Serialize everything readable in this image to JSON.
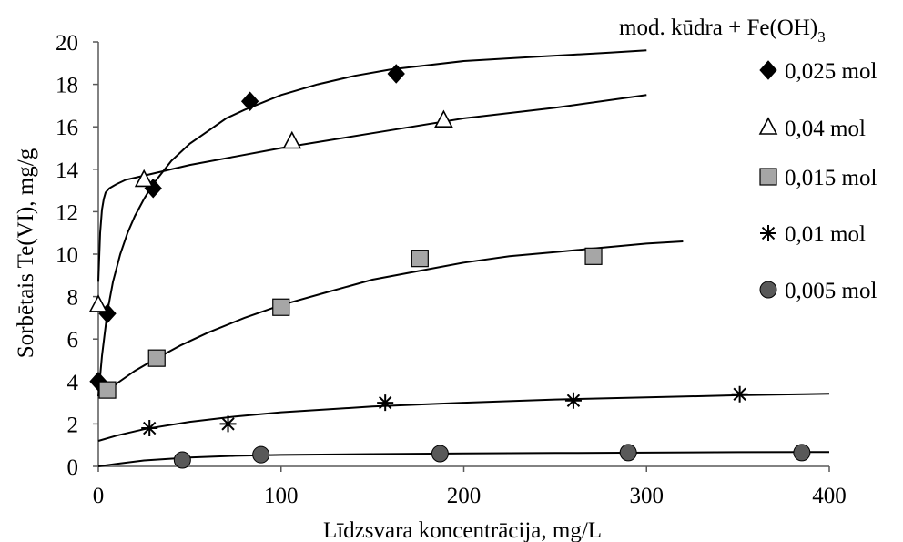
{
  "chart_data": {
    "type": "scatter",
    "title": "",
    "xlabel": "Līdzsvara koncentrācija, mg/L",
    "ylabel": "Sorbētais Te(VI),  mg/g",
    "xlim": [
      0,
      400
    ],
    "ylim": [
      0,
      20
    ],
    "x_ticks": [
      "0",
      "100",
      "200",
      "300",
      "400"
    ],
    "y_ticks": [
      "0",
      "2",
      "4",
      "6",
      "8",
      "10",
      "12",
      "14",
      "16",
      "18",
      "20"
    ],
    "grid": false,
    "legend_position": "right",
    "legend_title_main": "mod. kūdra + Fe(OH)",
    "legend_title_sub": "3",
    "series": [
      {
        "name": "0,025 mol",
        "marker": "diamond",
        "color": "#000000",
        "x": [
          0,
          5,
          30,
          83,
          163
        ],
        "y": [
          4.0,
          7.2,
          13.1,
          17.2,
          18.5
        ],
        "fit_x": [
          0,
          2,
          5,
          8,
          12,
          16,
          20,
          25,
          30,
          40,
          50,
          60,
          70,
          80,
          100,
          120,
          140,
          160,
          180,
          200,
          220,
          240,
          260,
          280,
          300
        ],
        "fit_y": [
          3.3,
          5.2,
          7.3,
          8.7,
          10.0,
          11.0,
          11.8,
          12.6,
          13.3,
          14.4,
          15.2,
          15.8,
          16.4,
          16.8,
          17.5,
          18.0,
          18.4,
          18.7,
          18.9,
          19.1,
          19.2,
          19.3,
          19.4,
          19.5,
          19.6
        ]
      },
      {
        "name": "0,04 mol",
        "marker": "triangle",
        "color": "#000000",
        "x": [
          0,
          25,
          106,
          189
        ],
        "y": [
          7.6,
          13.5,
          15.3,
          16.3
        ],
        "fit_x": [
          0,
          1,
          2,
          3,
          4,
          6,
          8,
          10,
          15,
          20,
          30,
          50,
          75,
          100,
          150,
          200,
          250,
          300
        ],
        "fit_y": [
          8.7,
          11.0,
          12.1,
          12.6,
          12.9,
          13.1,
          13.2,
          13.3,
          13.5,
          13.6,
          13.8,
          14.2,
          14.6,
          15.0,
          15.7,
          16.4,
          16.9,
          17.5
        ]
      },
      {
        "name": "0,015 mol",
        "marker": "square",
        "color": "#a6a6a6",
        "x": [
          5,
          32,
          100,
          176,
          271
        ],
        "y": [
          3.6,
          5.1,
          7.5,
          9.8,
          9.9
        ],
        "fit_x": [
          4,
          10,
          20,
          30,
          45,
          60,
          80,
          100,
          125,
          150,
          175,
          200,
          225,
          250,
          275,
          300,
          320
        ],
        "fit_y": [
          3.4,
          3.9,
          4.5,
          5.0,
          5.7,
          6.3,
          7.0,
          7.6,
          8.2,
          8.8,
          9.2,
          9.6,
          9.9,
          10.1,
          10.3,
          10.5,
          10.6
        ]
      },
      {
        "name": "0,01 mol",
        "marker": "star",
        "color": "#000000",
        "x": [
          28,
          71,
          157,
          260,
          351
        ],
        "y": [
          1.8,
          2.0,
          3.0,
          3.1,
          3.4
        ],
        "fit_x": [
          0,
          10,
          25,
          50,
          75,
          100,
          150,
          200,
          250,
          300,
          350,
          400
        ],
        "fit_y": [
          1.2,
          1.45,
          1.75,
          2.1,
          2.35,
          2.55,
          2.82,
          3.0,
          3.15,
          3.25,
          3.35,
          3.42
        ]
      },
      {
        "name": "0,005 mol",
        "marker": "circle",
        "color": "#595959",
        "x": [
          46,
          89,
          187,
          290,
          385
        ],
        "y": [
          0.3,
          0.55,
          0.6,
          0.65,
          0.65
        ],
        "fit_x": [
          0,
          10,
          25,
          50,
          75,
          100,
          150,
          200,
          250,
          300,
          350,
          400
        ],
        "fit_y": [
          0.0,
          0.12,
          0.28,
          0.42,
          0.5,
          0.54,
          0.58,
          0.61,
          0.63,
          0.65,
          0.67,
          0.68
        ]
      }
    ]
  }
}
